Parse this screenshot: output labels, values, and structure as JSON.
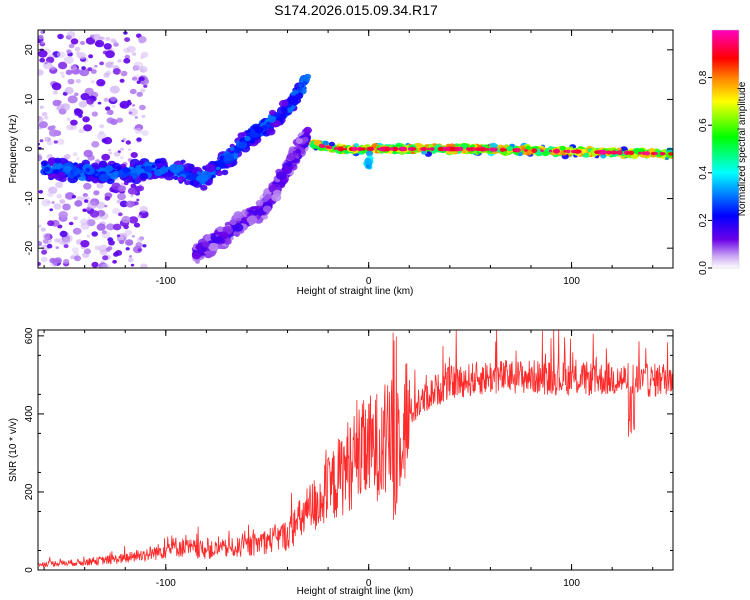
{
  "title": "S174.2026.015.09.34.R17",
  "chart_data": [
    {
      "type": "heatmap",
      "xlabel": "Height of straight line (km)",
      "ylabel": "Frequency (Hz)",
      "xlim": [
        -163,
        150
      ],
      "ylim": [
        -24,
        24
      ],
      "xticks": [
        -100,
        0,
        100
      ],
      "yticks": [
        -20,
        -10,
        0,
        10,
        20
      ],
      "colorbar": {
        "label": "Normalized spectral amplitude",
        "range": [
          0,
          1
        ],
        "ticks": [
          0.0,
          0.2,
          0.4,
          0.6,
          0.8
        ],
        "colors": [
          "#ffffff",
          "#c9a6f2",
          "#6a00e8",
          "#0000ff",
          "#00ffff",
          "#00ff00",
          "#ffff00",
          "#ff8000",
          "#ff0000",
          "#ff00c0"
        ]
      },
      "features": [
        {
          "name": "diffuse scatter",
          "x_range": [
            -163,
            -110
          ],
          "freq_range": [
            -24,
            24
          ],
          "amplitude": 0.1
        },
        {
          "name": "main rising branch",
          "points": [
            [
              -160,
              -4
            ],
            [
              -130,
              -5
            ],
            [
              -100,
              -4
            ],
            [
              -80,
              -6
            ],
            [
              -60,
              2
            ],
            [
              -40,
              8
            ],
            [
              -30,
              14
            ]
          ],
          "amplitude": 0.25
        },
        {
          "name": "lower rising branch",
          "points": [
            [
              -85,
              -21
            ],
            [
              -70,
              -17
            ],
            [
              -50,
              -11
            ],
            [
              -40,
              -4
            ],
            [
              -30,
              3
            ]
          ],
          "amplitude": 0.12
        },
        {
          "name": "steady line",
          "points": [
            [
              -28,
              1
            ],
            [
              -15,
              0
            ],
            [
              50,
              0
            ],
            [
              100,
              -0.5
            ],
            [
              150,
              -1
            ]
          ],
          "amplitude": 0.75
        }
      ]
    },
    {
      "type": "line",
      "xlabel": "Height of straight line (km)",
      "ylabel": "SNR (10 * v/v)",
      "xlim": [
        -163,
        150
      ],
      "ylim": [
        0,
        615
      ],
      "xticks": [
        -100,
        0,
        100
      ],
      "yticks": [
        0,
        200,
        400,
        600
      ],
      "color": "#ff2a2a",
      "series": [
        {
          "name": "SNR",
          "envelope": [
            [
              -163,
              15
            ],
            [
              -140,
              20
            ],
            [
              -120,
              30
            ],
            [
              -105,
              45
            ],
            [
              -95,
              60
            ],
            [
              -80,
              50
            ],
            [
              -60,
              60
            ],
            [
              -40,
              90
            ],
            [
              -30,
              150
            ],
            [
              -20,
              200
            ],
            [
              -10,
              270
            ],
            [
              0,
              310
            ],
            [
              10,
              330
            ],
            [
              20,
              400
            ],
            [
              30,
              450
            ],
            [
              40,
              480
            ],
            [
              60,
              495
            ],
            [
              80,
              495
            ],
            [
              100,
              490
            ],
            [
              120,
              490
            ],
            [
              140,
              485
            ],
            [
              150,
              495
            ]
          ]
        }
      ]
    }
  ]
}
